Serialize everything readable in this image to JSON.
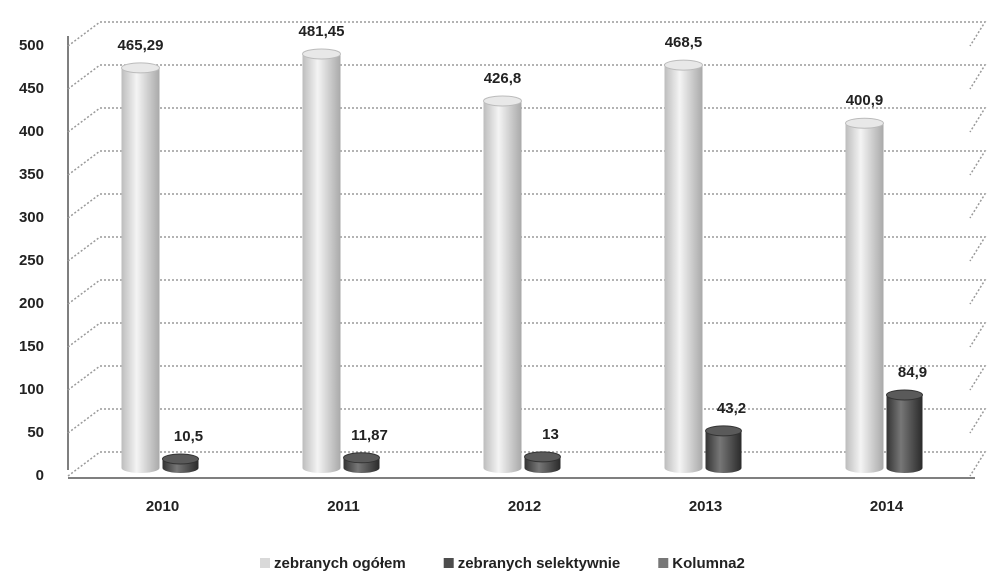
{
  "chart_data": {
    "type": "bar",
    "categories": [
      "2010",
      "2011",
      "2012",
      "2013",
      "2014"
    ],
    "series": [
      {
        "name": "zebranych ogółem",
        "color": "#d9d9d9",
        "values": [
          465.29,
          481.45,
          426.8,
          468.5,
          400.9
        ],
        "value_labels": [
          "465,29",
          "481,45",
          "426,8",
          "468,5",
          "400,9"
        ]
      },
      {
        "name": "zebranych selektywnie",
        "color": "#4d4d4d",
        "values": [
          10.5,
          11.87,
          13,
          43.2,
          84.9
        ],
        "value_labels": [
          "10,5",
          "11,87",
          "13",
          "43,2",
          "84,9"
        ]
      },
      {
        "name": "Kolumna2",
        "color": "#777777",
        "values": [
          null,
          null,
          null,
          null,
          null
        ]
      }
    ],
    "ylim": [
      0,
      500
    ],
    "yticks": [
      0,
      50,
      100,
      150,
      200,
      250,
      300,
      350,
      400,
      450,
      500
    ],
    "grid": true,
    "legend": "bottom"
  }
}
